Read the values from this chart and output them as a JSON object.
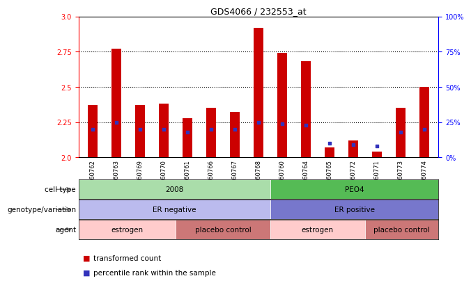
{
  "title": "GDS4066 / 232553_at",
  "samples": [
    "GSM560762",
    "GSM560763",
    "GSM560769",
    "GSM560770",
    "GSM560761",
    "GSM560766",
    "GSM560767",
    "GSM560768",
    "GSM560760",
    "GSM560764",
    "GSM560765",
    "GSM560772",
    "GSM560771",
    "GSM560773",
    "GSM560774"
  ],
  "transformed_count": [
    2.37,
    2.77,
    2.37,
    2.38,
    2.28,
    2.35,
    2.32,
    2.92,
    2.74,
    2.68,
    2.07,
    2.12,
    2.04,
    2.35,
    2.5
  ],
  "percentile_rank": [
    20,
    25,
    20,
    20,
    18,
    20,
    20,
    25,
    24,
    23,
    10,
    9,
    8,
    18,
    20
  ],
  "ylim_left": [
    2.0,
    3.0
  ],
  "ylim_right": [
    0,
    100
  ],
  "yticks_left": [
    2.0,
    2.25,
    2.5,
    2.75,
    3.0
  ],
  "yticks_right": [
    0,
    25,
    50,
    75,
    100
  ],
  "gridlines": [
    2.25,
    2.5,
    2.75
  ],
  "bar_color": "#cc0000",
  "blue_color": "#3333bb",
  "bar_bottom": 2.0,
  "cell_type_groups": [
    {
      "label": "2008",
      "start": 0,
      "end": 8,
      "color": "#aaddaa"
    },
    {
      "label": "PEO4",
      "start": 8,
      "end": 15,
      "color": "#55bb55"
    }
  ],
  "genotype_groups": [
    {
      "label": "ER negative",
      "start": 0,
      "end": 8,
      "color": "#bbbbee"
    },
    {
      "label": "ER positive",
      "start": 8,
      "end": 15,
      "color": "#7777cc"
    }
  ],
  "agent_groups": [
    {
      "label": "estrogen",
      "start": 0,
      "end": 4,
      "color": "#ffcccc"
    },
    {
      "label": "placebo control",
      "start": 4,
      "end": 8,
      "color": "#cc7777"
    },
    {
      "label": "estrogen",
      "start": 8,
      "end": 12,
      "color": "#ffcccc"
    },
    {
      "label": "placebo control",
      "start": 12,
      "end": 15,
      "color": "#cc7777"
    }
  ],
  "row_labels": [
    "cell type",
    "genotype/variation",
    "agent"
  ],
  "legend_items": [
    {
      "label": "transformed count",
      "color": "#cc0000"
    },
    {
      "label": "percentile rank within the sample",
      "color": "#3333bb"
    }
  ]
}
